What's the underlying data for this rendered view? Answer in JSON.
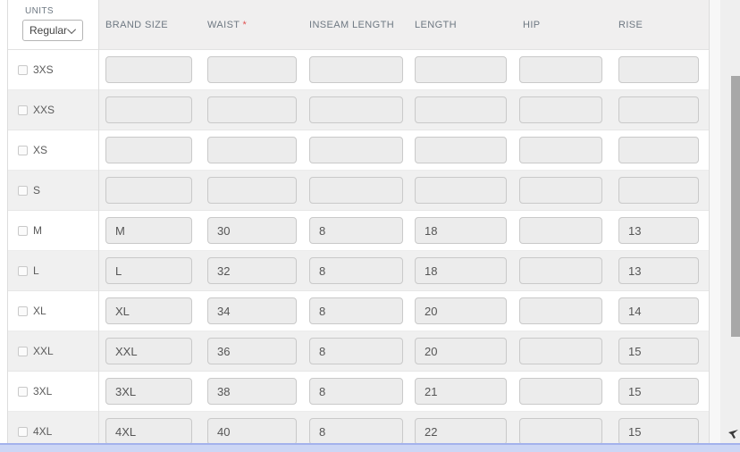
{
  "units": {
    "label": "UNITS",
    "selected": "Regular"
  },
  "required_marker": "*",
  "columns": [
    {
      "key": "brand-size",
      "label": "BRAND SIZE",
      "required": false
    },
    {
      "key": "waist",
      "label": "WAIST",
      "required": true
    },
    {
      "key": "inseam-length",
      "label": "INSEAM LENGTH",
      "required": false
    },
    {
      "key": "length",
      "label": "LENGTH",
      "required": false
    },
    {
      "key": "hip",
      "label": "HIP",
      "required": false
    },
    {
      "key": "rise",
      "label": "RISE",
      "required": false
    }
  ],
  "rows": [
    {
      "size": "3XS",
      "checked": false,
      "values": [
        "",
        "",
        "",
        "",
        "",
        ""
      ]
    },
    {
      "size": "XXS",
      "checked": false,
      "values": [
        "",
        "",
        "",
        "",
        "",
        ""
      ]
    },
    {
      "size": "XS",
      "checked": false,
      "values": [
        "",
        "",
        "",
        "",
        "",
        ""
      ]
    },
    {
      "size": "S",
      "checked": false,
      "values": [
        "",
        "",
        "",
        "",
        "",
        ""
      ]
    },
    {
      "size": "M",
      "checked": false,
      "values": [
        "M",
        "30",
        "8",
        "18",
        "",
        "13"
      ]
    },
    {
      "size": "L",
      "checked": false,
      "values": [
        "L",
        "32",
        "8",
        "18",
        "",
        "13"
      ]
    },
    {
      "size": "XL",
      "checked": false,
      "values": [
        "XL",
        "34",
        "8",
        "20",
        "",
        "14"
      ]
    },
    {
      "size": "XXL",
      "checked": false,
      "values": [
        "XXL",
        "36",
        "8",
        "20",
        "",
        "15"
      ]
    },
    {
      "size": "3XL",
      "checked": false,
      "values": [
        "3XL",
        "38",
        "8",
        "21",
        "",
        "15"
      ]
    },
    {
      "size": "4XL",
      "checked": false,
      "values": [
        "4XL",
        "40",
        "8",
        "22",
        "",
        "15"
      ]
    }
  ],
  "colors": {
    "required_asterisk": "#e05252",
    "header_text": "#6e7882",
    "h_scrollbar_fill": "#ccd6f5",
    "h_scrollbar_border": "#a3b2ec",
    "row_alt_bg": "#f0f0f0",
    "input_bg": "#ececec"
  }
}
